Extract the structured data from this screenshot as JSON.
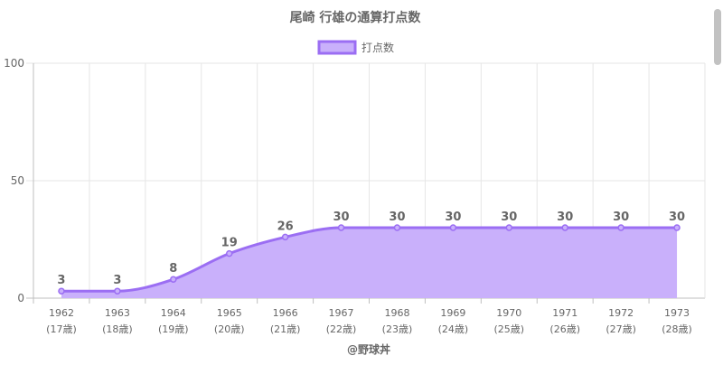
{
  "chart_data": {
    "type": "line",
    "title": "尾崎 行雄の通算打点数",
    "legend": "打点数",
    "legend_position": "top",
    "categories": [
      "1962",
      "1963",
      "1964",
      "1965",
      "1966",
      "1967",
      "1968",
      "1969",
      "1970",
      "1971",
      "1972",
      "1973"
    ],
    "age_labels": [
      "(17歳)",
      "(18歳)",
      "(19歳)",
      "(20歳)",
      "(21歳)",
      "(22歳)",
      "(23歳)",
      "(24歳)",
      "(25歳)",
      "(26歳)",
      "(27歳)",
      "(28歳)"
    ],
    "series": [
      {
        "name": "打点数",
        "values": [
          3,
          3,
          8,
          19,
          26,
          30,
          30,
          30,
          30,
          30,
          30,
          30
        ]
      }
    ],
    "ylim": [
      0,
      100
    ],
    "yticks": [
      0,
      50,
      100
    ],
    "grid": true,
    "filled": true,
    "data_labels": true,
    "colors": {
      "line": "#9b6ef3",
      "fill": "#c9b0fb",
      "grid": "#e6e6e6",
      "text": "#666666"
    }
  },
  "footer": {
    "credit": "@野球丼"
  }
}
